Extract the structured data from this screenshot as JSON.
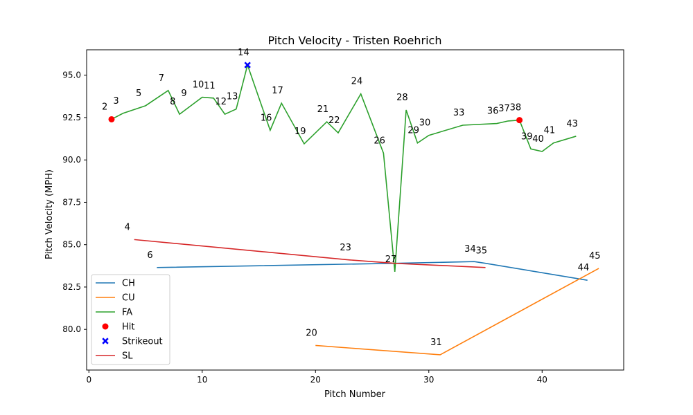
{
  "chart_data": {
    "type": "line",
    "title": "Pitch Velocity - Tristen Roehrich",
    "xlabel": "Pitch Number",
    "ylabel": "Pitch Velocity (MPH)",
    "xlim": [
      -0.2,
      47.2
    ],
    "ylim": [
      77.6,
      96.5
    ],
    "xticks": [
      0,
      10,
      20,
      30,
      40
    ],
    "yticks": [
      80.0,
      82.5,
      85.0,
      87.5,
      90.0,
      92.5,
      95.0
    ],
    "legend_position": "lower-left",
    "series": [
      {
        "name": "CH",
        "color": "#1f77b4",
        "points": [
          [
            6,
            83.65
          ],
          [
            27,
            83.9
          ],
          [
            34,
            84.0
          ],
          [
            35,
            83.9
          ],
          [
            44,
            82.9
          ]
        ]
      },
      {
        "name": "CU",
        "color": "#ff7f0e",
        "points": [
          [
            20,
            79.05
          ],
          [
            31,
            78.5
          ],
          [
            45,
            83.6
          ]
        ]
      },
      {
        "name": "FA",
        "color": "#2ca02c",
        "points": [
          [
            2,
            92.4
          ],
          [
            3,
            92.75
          ],
          [
            5,
            93.2
          ],
          [
            7,
            94.1
          ],
          [
            8,
            92.7
          ],
          [
            9,
            93.2
          ],
          [
            10,
            93.7
          ],
          [
            11,
            93.65
          ],
          [
            12,
            92.7
          ],
          [
            13,
            93.0
          ],
          [
            14,
            95.6
          ],
          [
            16,
            91.75
          ],
          [
            17,
            93.35
          ],
          [
            19,
            90.95
          ],
          [
            21,
            92.25
          ],
          [
            22,
            91.6
          ],
          [
            24,
            93.9
          ],
          [
            26,
            90.4
          ],
          [
            27,
            83.4
          ],
          [
            28,
            92.95
          ],
          [
            29,
            91.0
          ],
          [
            30,
            91.45
          ],
          [
            33,
            92.05
          ],
          [
            36,
            92.15
          ],
          [
            37,
            92.3
          ],
          [
            38,
            92.35
          ],
          [
            39,
            90.65
          ],
          [
            40,
            90.5
          ],
          [
            41,
            91.0
          ],
          [
            43,
            91.4
          ]
        ]
      },
      {
        "name": "SL",
        "color": "#d62728",
        "points": [
          [
            4,
            85.3
          ],
          [
            23,
            84.1
          ],
          [
            27,
            83.9
          ],
          [
            35,
            83.65
          ]
        ]
      }
    ],
    "markers": [
      {
        "name": "Hit",
        "color": "#ff0000",
        "shape": "circle",
        "points": [
          [
            2,
            92.4
          ],
          [
            38,
            92.35
          ]
        ]
      },
      {
        "name": "Strikeout",
        "color": "#0000ff",
        "shape": "x",
        "points": [
          [
            14,
            95.6
          ]
        ]
      }
    ],
    "legend": [
      "CH",
      "CU",
      "FA",
      "Hit",
      "Strikeout",
      "SL"
    ],
    "point_labels": [
      {
        "text": "2",
        "x": 2,
        "y": 92.4
      },
      {
        "text": "3",
        "x": 3,
        "y": 92.75
      },
      {
        "text": "4",
        "x": 4,
        "y": 85.3
      },
      {
        "text": "5",
        "x": 5,
        "y": 93.2
      },
      {
        "text": "6",
        "x": 6,
        "y": 83.65
      },
      {
        "text": "7",
        "x": 7,
        "y": 94.1
      },
      {
        "text": "8",
        "x": 8,
        "y": 92.7
      },
      {
        "text": "9",
        "x": 9,
        "y": 93.2
      },
      {
        "text": "10",
        "x": 10,
        "y": 93.7
      },
      {
        "text": "11",
        "x": 11,
        "y": 93.65
      },
      {
        "text": "12",
        "x": 12,
        "y": 92.7
      },
      {
        "text": "13",
        "x": 13,
        "y": 93.0
      },
      {
        "text": "14",
        "x": 14,
        "y": 95.6
      },
      {
        "text": "16",
        "x": 16,
        "y": 91.75
      },
      {
        "text": "17",
        "x": 17,
        "y": 93.35
      },
      {
        "text": "19",
        "x": 19,
        "y": 90.95
      },
      {
        "text": "20",
        "x": 20,
        "y": 79.05
      },
      {
        "text": "21",
        "x": 21,
        "y": 92.25
      },
      {
        "text": "22",
        "x": 22,
        "y": 91.6
      },
      {
        "text": "23",
        "x": 23,
        "y": 84.1
      },
      {
        "text": "24",
        "x": 24,
        "y": 93.9
      },
      {
        "text": "26",
        "x": 26,
        "y": 90.4
      },
      {
        "text": "27",
        "x": 27,
        "y": 83.4
      },
      {
        "text": "28",
        "x": 28,
        "y": 92.95
      },
      {
        "text": "29",
        "x": 29,
        "y": 91.0
      },
      {
        "text": "30",
        "x": 30,
        "y": 91.45
      },
      {
        "text": "31",
        "x": 31,
        "y": 78.5
      },
      {
        "text": "33",
        "x": 33,
        "y": 92.05
      },
      {
        "text": "34",
        "x": 34,
        "y": 84.0
      },
      {
        "text": "35",
        "x": 35,
        "y": 83.9
      },
      {
        "text": "36",
        "x": 36,
        "y": 92.15
      },
      {
        "text": "37",
        "x": 37,
        "y": 92.3
      },
      {
        "text": "38",
        "x": 38,
        "y": 92.35
      },
      {
        "text": "39",
        "x": 39,
        "y": 90.65
      },
      {
        "text": "40",
        "x": 40,
        "y": 90.5
      },
      {
        "text": "41",
        "x": 41,
        "y": 91.0
      },
      {
        "text": "43",
        "x": 43,
        "y": 91.4
      },
      {
        "text": "44",
        "x": 44,
        "y": 82.9
      },
      {
        "text": "45",
        "x": 45,
        "y": 83.6
      }
    ]
  }
}
